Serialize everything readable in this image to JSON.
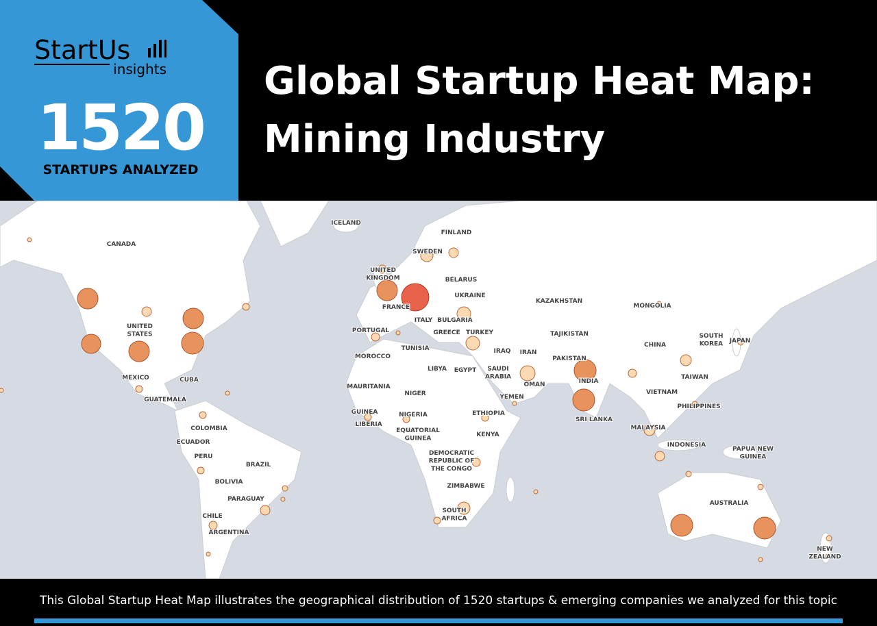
{
  "header": {
    "logo": "StartUs",
    "logo_sub": "insights",
    "count": "1520",
    "count_caption": "STARTUPS ANALYZED",
    "title": [
      "Global Startup Heat Map:",
      "Mining Industry"
    ]
  },
  "map": {
    "labels": [
      [
        "ICELAND"
      ],
      [
        "FINLAND"
      ],
      [
        "CANADA"
      ],
      [
        "SWEDEN"
      ],
      [
        "UNITED",
        "KINGDOM"
      ],
      [
        "BELARUS"
      ],
      [
        "UKRAINE"
      ],
      [
        "KAZAKHSTAN"
      ],
      [
        "MONGOLIA"
      ],
      [
        "FRANCE"
      ],
      [
        "ITALY"
      ],
      [
        "BULGARIA"
      ],
      [
        "UNITED",
        "STATES"
      ],
      [
        "PORTUGAL"
      ],
      [
        "GREECE"
      ],
      [
        "TURKEY"
      ],
      [
        "TAJIKISTAN"
      ],
      [
        "SOUTH",
        "KOREA"
      ],
      [
        "JAPAN"
      ],
      [
        "CHINA"
      ],
      [
        "TUNISIA"
      ],
      [
        "IRAQ"
      ],
      [
        "IRAN"
      ],
      [
        "MOROCCO"
      ],
      [
        "PAKISTAN"
      ],
      [
        "LIBYA"
      ],
      [
        "EGYPT"
      ],
      [
        "SAUDI",
        "ARABIA"
      ],
      [
        "TAIWAN"
      ],
      [
        "MEXICO"
      ],
      [
        "CUBA"
      ],
      [
        "INDIA"
      ],
      [
        "OMAN"
      ],
      [
        "MAURITANIA"
      ],
      [
        "VIETNAM"
      ],
      [
        "NIGER"
      ],
      [
        "GUATEMALA"
      ],
      [
        "YEMEN"
      ],
      [
        "PHILIPPINES"
      ],
      [
        "GUINEA"
      ],
      [
        "NIGERIA"
      ],
      [
        "ETHIOPIA"
      ],
      [
        "SRI LANKA"
      ],
      [
        "LIBERIA"
      ],
      [
        "MALAYSIA"
      ],
      [
        "COLOMBIA"
      ],
      [
        "EQUATORIAL",
        "GUINEA"
      ],
      [
        "KENYA"
      ],
      [
        "ECUADOR"
      ],
      [
        "INDONESIA"
      ],
      [
        "PAPUA NEW",
        "GUINEA"
      ],
      [
        "DEMOCRATIC",
        "REPUBLIC OF",
        "THE CONGO"
      ],
      [
        "PERU"
      ],
      [
        "BRAZIL"
      ],
      [
        "ZIMBABWE"
      ],
      [
        "BOLIVIA"
      ],
      [
        "PARAGUAY"
      ],
      [
        "AUSTRALIA"
      ],
      [
        "CHILE"
      ],
      [
        "SOUTH",
        "AFRICA"
      ],
      [
        "ARGENTINA"
      ],
      [
        "NEW",
        "ZEALAND"
      ]
    ]
  },
  "footer": {
    "text": "This Global Startup Heat Map illustrates the geographical distribution of 1520 startups & emerging companies we analyzed for this topic"
  }
}
